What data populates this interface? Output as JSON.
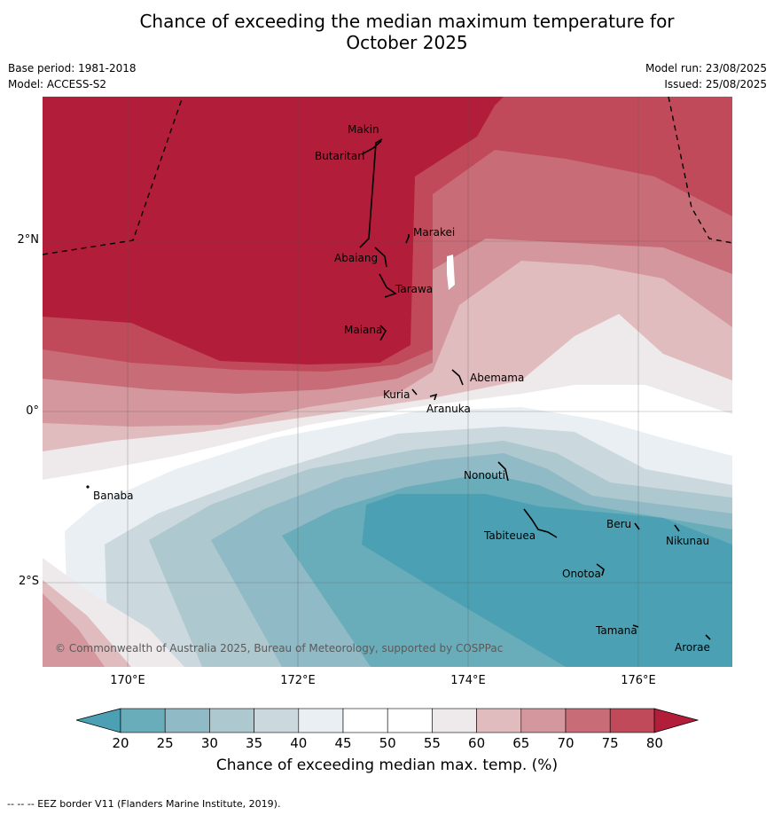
{
  "title_line1": "Chance of exceeding the median maximum temperature for",
  "title_line2": "October 2025",
  "meta": {
    "base_period": "Base period: 1981-2018",
    "model": "Model: ACCESS-S2",
    "model_run": "Model run: 23/08/2025",
    "issued": "Issued: 25/08/2025"
  },
  "map": {
    "lat_ticks": [
      "2°N",
      "0°",
      "2°S"
    ],
    "lon_ticks": [
      "170°E",
      "172°E",
      "174°E",
      "176°E"
    ],
    "places": {
      "makin": "Makin",
      "butaritari": "Butaritari",
      "marakei": "Marakei",
      "abaiang": "Abaiang",
      "tarawa": "Tarawa",
      "maiana": "Maiana",
      "abemama": "Abemama",
      "kuria": "Kuria",
      "aranuka": "Aranuka",
      "nonouti": "Nonouti",
      "banaba": "Banaba",
      "beru": "Beru",
      "tabiteuea": "Tabiteuea",
      "nikunau": "Nikunau",
      "onotoa": "Onotoa",
      "tamana": "Tamana",
      "arorae": "Arorae"
    },
    "copyright": "© Commonwealth of Australia 2025, Bureau of Meteorology, supported by COSPPac"
  },
  "colorbar": {
    "ticks": [
      "20",
      "25",
      "30",
      "35",
      "40",
      "45",
      "50",
      "55",
      "60",
      "65",
      "70",
      "75",
      "80"
    ],
    "colors": [
      "#6aadba",
      "#8fbac6",
      "#adc8ce",
      "#cbd9de",
      "#e9eff2",
      "#ffffff",
      "#ffffff",
      "#eeeaeb",
      "#e0bcbf",
      "#d3979d",
      "#c86c78",
      "#c04a59"
    ],
    "low_extend_color": "#4ba1b3",
    "high_extend_color": "#b21d3a",
    "label": "Chance of exceeding median max. temp. (%)"
  },
  "eez_note": "-- -- -- EEZ border V11 (Flanders Marine Institute, 2019)."
}
